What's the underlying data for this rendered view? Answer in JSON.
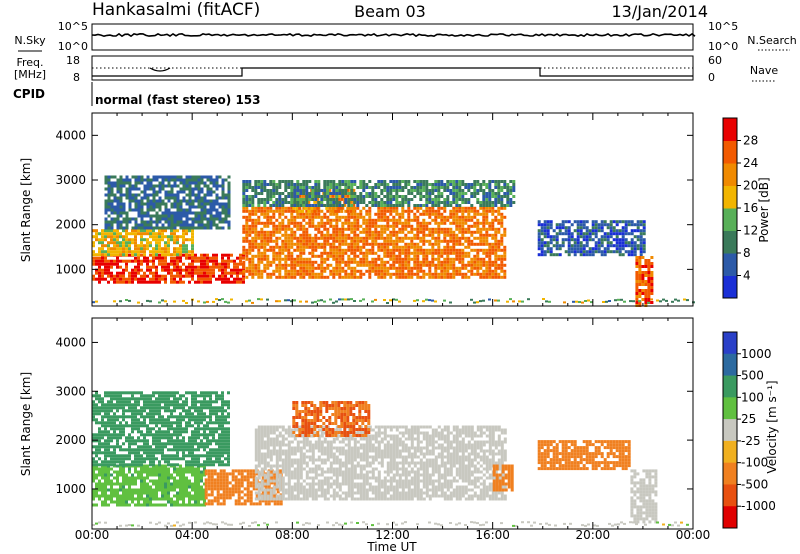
{
  "header": {
    "station": "Hankasalmi (fitACF)",
    "beam": "Beam 03",
    "date": "13/Jan/2014"
  },
  "status_panel": {
    "nsky_label": "N.Sky",
    "nsearch_label": "N.Search",
    "left_ticks_top": [
      "10^5",
      "10^0"
    ],
    "right_ticks_top": [
      "10^5",
      "10^0"
    ],
    "freq_label_line1": "Freq.",
    "freq_label_line2": "[MHz]",
    "freq_ticks": [
      "18",
      "8"
    ],
    "nave_label": "Nave",
    "nave_ticks": [
      "60",
      "0"
    ],
    "cpid_label": "CPID",
    "cpid_text": "normal (fast stereo) 153"
  },
  "colors": {
    "power_scale": [
      "#1a2fd6",
      "#2c5aa8",
      "#3a7a5a",
      "#58b058",
      "#f2b500",
      "#f08a00",
      "#f25a00",
      "#e80000"
    ],
    "velocity_scale": [
      "#2a40c8",
      "#2c6aa0",
      "#3a9a60",
      "#60c040",
      "#c8c8c0",
      "#f0b020",
      "#f08020",
      "#e85010",
      "#e00000"
    ]
  },
  "chart_data": [
    {
      "type": "heatmap",
      "title": "",
      "xlabel": "Time UT",
      "ylabel": "Slant Range [km]",
      "xlim": [
        0,
        24
      ],
      "ylim": [
        180,
        4500
      ],
      "x_ticks": [
        "00:00",
        "04:00",
        "08:00",
        "12:00",
        "16:00",
        "20:00",
        "00:00"
      ],
      "y_ticks": [
        "1000",
        "2000",
        "3000",
        "4000"
      ],
      "colorbar_label": "Power [dB]",
      "colorbar_ticks": [
        "4",
        "8",
        "12",
        "16",
        "20",
        "24",
        "28"
      ],
      "colorbar_range": [
        0,
        32
      ],
      "regions": [
        {
          "t": [
            0.0,
            6.0
          ],
          "r": [
            700,
            1350
          ],
          "value": 28
        },
        {
          "t": [
            0.0,
            4.0
          ],
          "r": [
            1350,
            1900
          ],
          "value": 18
        },
        {
          "t": [
            0.5,
            5.5
          ],
          "r": [
            1900,
            3100
          ],
          "value": 8
        },
        {
          "t": [
            6.0,
            16.5
          ],
          "r": [
            800,
            2400
          ],
          "value": 24
        },
        {
          "t": [
            8.0,
            10.5
          ],
          "r": [
            2300,
            2800
          ],
          "value": 22
        },
        {
          "t": [
            6.0,
            16.8
          ],
          "r": [
            2400,
            3000
          ],
          "value": 10
        },
        {
          "t": [
            17.8,
            22.0
          ],
          "r": [
            1300,
            2100
          ],
          "value": 6
        },
        {
          "t": [
            21.7,
            22.4
          ],
          "r": [
            200,
            1300
          ],
          "value": 26
        }
      ]
    },
    {
      "type": "heatmap",
      "title": "",
      "xlabel": "Time UT",
      "ylabel": "Slant Range [km]",
      "xlim": [
        0,
        24
      ],
      "ylim": [
        180,
        4500
      ],
      "x_ticks": [
        "00:00",
        "04:00",
        "08:00",
        "12:00",
        "16:00",
        "20:00",
        "00:00"
      ],
      "y_ticks": [
        "1000",
        "2000",
        "3000",
        "4000"
      ],
      "colorbar_label": "Velocity [m s⁻¹]",
      "colorbar_ticks": [
        "1000",
        "500",
        "100",
        "25",
        "-25",
        "-100",
        "-500",
        "-1000"
      ],
      "regions": [
        {
          "t": [
            0.0,
            4.5
          ],
          "r": [
            700,
            1500
          ],
          "value": 80
        },
        {
          "t": [
            0.0,
            5.5
          ],
          "r": [
            1500,
            3000
          ],
          "value": 300
        },
        {
          "t": [
            4.5,
            7.5
          ],
          "r": [
            700,
            1400
          ],
          "value": -200
        },
        {
          "t": [
            6.5,
            16.5
          ],
          "r": [
            800,
            2300
          ],
          "value": 0
        },
        {
          "t": [
            8.0,
            11.0
          ],
          "r": [
            2100,
            2800
          ],
          "value": -500
        },
        {
          "t": [
            16.0,
            16.8
          ],
          "r": [
            1000,
            1500
          ],
          "value": -300
        },
        {
          "t": [
            17.8,
            21.5
          ],
          "r": [
            1400,
            2000
          ],
          "value": -200
        },
        {
          "t": [
            21.5,
            22.5
          ],
          "r": [
            300,
            1400
          ],
          "value": 0
        }
      ]
    }
  ]
}
